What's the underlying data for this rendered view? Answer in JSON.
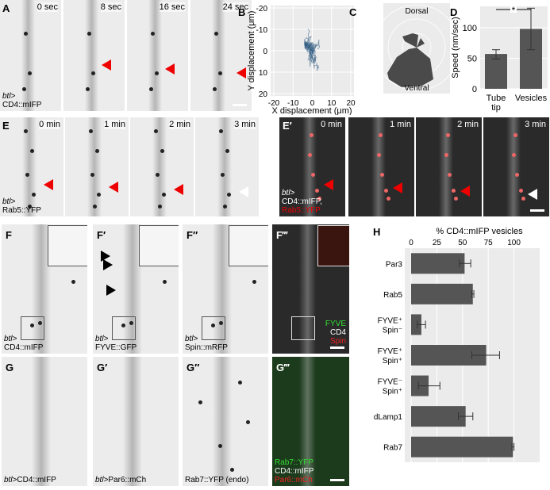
{
  "panels": {
    "A": {
      "label": "A",
      "times": [
        "0 sec",
        "8 sec",
        "16 sec",
        "24 sec"
      ],
      "caption_italic": "btl>",
      "caption": "CD4::mIFP"
    },
    "B": {
      "label": "B"
    },
    "C": {
      "label": "C",
      "top": "Dorsal",
      "bottom": "Ventral"
    },
    "D": {
      "label": "D"
    },
    "E": {
      "label": "E",
      "times": [
        "0 min",
        "1 min",
        "2 min",
        "3 min"
      ],
      "caption_italic": "btl>",
      "caption": "Rab5::YFP"
    },
    "E2": {
      "label": "E′",
      "times": [
        "0 min",
        "1 min",
        "2 min",
        "3 min"
      ],
      "caption_italic": "btl>",
      "caption": "CD4::mIFP,",
      "caption_red": "Rab5::YFP"
    },
    "F": {
      "label": "F",
      "caption_italic": "btl>",
      "caption": "CD4::mIFP"
    },
    "F1": {
      "label": "F′",
      "caption_italic": "btl>",
      "caption": "FYVE::GFP"
    },
    "F2": {
      "label": "F″",
      "caption_italic": "btl>",
      "caption": "Spin::mRFP"
    },
    "F3": {
      "label": "F‴",
      "legend": [
        "FYVE",
        "CD4",
        "Spin"
      ]
    },
    "G": {
      "label": "G",
      "caption_italic": "btl",
      "caption": ">CD4::mIFP"
    },
    "G1": {
      "label": "G′",
      "caption_italic": "btl",
      "caption": ">Par6::mCh"
    },
    "G2": {
      "label": "G″",
      "caption": "Rab7::YFP (endo)"
    },
    "G3": {
      "label": "G‴",
      "legend": [
        "Rab7::YFP",
        "CD4::mIFP",
        "Par6::mCh"
      ]
    },
    "H": {
      "label": "H"
    }
  },
  "chart_data": [
    {
      "panel": "B",
      "type": "line",
      "xlabel": "X displacement (μm)",
      "ylabel": "Y displacement (μm)",
      "xlim": [
        -20,
        20
      ],
      "ylim": [
        20,
        -20
      ],
      "xticks": [
        "-20",
        "-10",
        "0",
        "10",
        "20"
      ],
      "yticks": [
        "-20",
        "-10",
        "0",
        "10",
        "20"
      ],
      "grid": true,
      "color": "#2e5a80"
    },
    {
      "panel": "C",
      "type": "polar-histogram",
      "labels": [
        "Dorsal",
        "Ventral"
      ]
    },
    {
      "panel": "D",
      "type": "bar",
      "categories": [
        "Tube tip",
        "Vesicles"
      ],
      "values": [
        57,
        98
      ],
      "error_low": [
        49,
        64
      ],
      "error_high": [
        64,
        132
      ],
      "ylabel": "Speed (nm/sec)",
      "ylim": [
        0,
        135
      ],
      "yticks": [
        "0",
        "50",
        "100"
      ],
      "significance": "*",
      "bar_color": "#555555"
    },
    {
      "panel": "H",
      "type": "bar",
      "orientation": "horizontal",
      "title": "% CD4::mIFP vesicles",
      "categories": [
        "Par3",
        "Rab5",
        "FYVE⁺ Spin⁻",
        "FYVE⁺ Spin⁺",
        "FYVE⁻ Spin⁺",
        "dLamp1",
        "Rab7"
      ],
      "values": [
        52,
        60,
        10,
        73,
        17,
        53,
        99
      ],
      "error_low": [
        47,
        59,
        6,
        59,
        7,
        46,
        98
      ],
      "error_high": [
        58,
        61,
        14,
        86,
        28,
        60,
        100
      ],
      "xlim": [
        0,
        125
      ],
      "xticks": [
        "0",
        "25",
        "50",
        "75",
        "100"
      ],
      "bar_color": "#555555"
    }
  ]
}
